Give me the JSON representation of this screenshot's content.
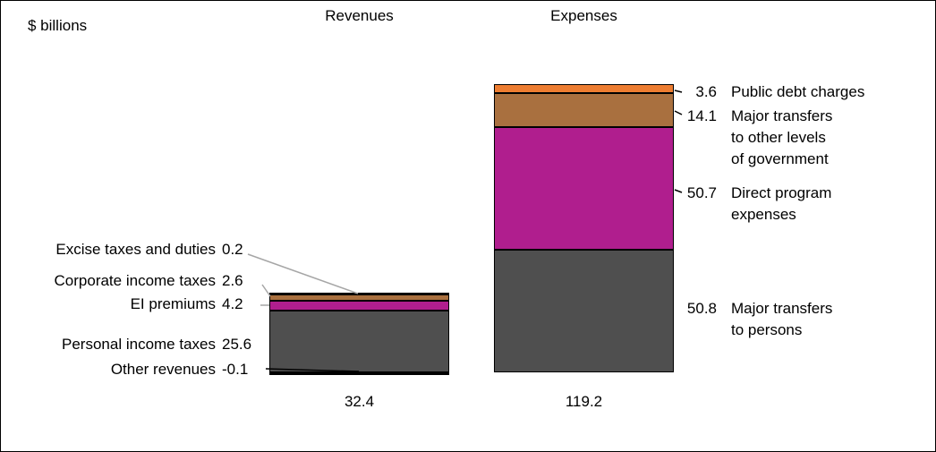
{
  "header": {
    "unit_label": "$ billions",
    "revenues": "Revenues",
    "expenses": "Expenses"
  },
  "labels": {
    "left": [
      {
        "label": "Excise taxes and duties",
        "value": "0.2"
      },
      {
        "label": "Corporate income taxes",
        "value": "2.6"
      },
      {
        "label": "EI premiums",
        "value": "4.2"
      },
      {
        "label": "Personal income taxes",
        "value": "25.6"
      },
      {
        "label": "Other revenues",
        "value": "-0.1"
      }
    ],
    "right": [
      {
        "value": "3.6",
        "text": "Public debt charges"
      },
      {
        "value": "14.1",
        "text": "Major transfers\nto other levels\nof government"
      },
      {
        "value": "50.7",
        "text": "Direct program\nexpenses"
      },
      {
        "value": "50.8",
        "text": "Major transfers\nto persons"
      }
    ],
    "totals": {
      "revenues": "32.4",
      "expenses": "119.2"
    }
  },
  "chart_data": {
    "type": "bar",
    "stacked": true,
    "title": "",
    "unit": "$ billions",
    "categories": [
      "Revenues",
      "Expenses"
    ],
    "totals": [
      32.4,
      119.2
    ],
    "legend_position": "none",
    "grid": false,
    "bars": [
      {
        "category": "Revenues",
        "total": 32.4,
        "segments": [
          {
            "label": "Personal income taxes",
            "value": 25.6,
            "color": "#4f4f4f"
          },
          {
            "label": "EI premiums",
            "value": 4.2,
            "color": "#b01e8e"
          },
          {
            "label": "Corporate income taxes",
            "value": 2.6,
            "color": "#a9703f"
          },
          {
            "label": "Excise taxes and duties",
            "value": 0.2,
            "color": "#ed7d31"
          },
          {
            "label": "Other revenues",
            "value": -0.1,
            "color": "#000000"
          }
        ]
      },
      {
        "category": "Expenses",
        "total": 119.2,
        "segments": [
          {
            "label": "Major transfers to persons",
            "value": 50.8,
            "color": "#4f4f4f"
          },
          {
            "label": "Direct program expenses",
            "value": 50.7,
            "color": "#b01e8e"
          },
          {
            "label": "Major transfers to other levels of government",
            "value": 14.1,
            "color": "#a9703f"
          },
          {
            "label": "Public debt charges",
            "value": 3.6,
            "color": "#ed7d31"
          }
        ]
      }
    ]
  }
}
